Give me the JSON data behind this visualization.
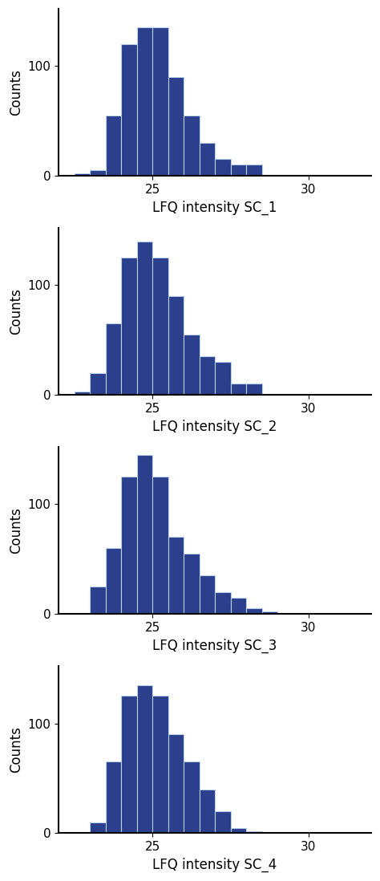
{
  "subplots": [
    {
      "xlabel": "LFQ intensity SC_1",
      "counts": [
        2,
        5,
        55,
        120,
        135,
        135,
        90,
        55,
        30,
        15,
        10,
        10
      ],
      "bin_start": 22.5,
      "bin_width": 0.5
    },
    {
      "xlabel": "LFQ intensity SC_2",
      "counts": [
        3,
        20,
        65,
        125,
        140,
        125,
        90,
        55,
        35,
        30,
        10,
        10
      ],
      "bin_start": 22.5,
      "bin_width": 0.5
    },
    {
      "xlabel": "LFQ intensity SC_3",
      "counts": [
        25,
        60,
        125,
        145,
        125,
        70,
        55,
        35,
        20,
        15,
        5,
        2
      ],
      "bin_start": 23.0,
      "bin_width": 0.5
    },
    {
      "xlabel": "LFQ intensity SC_4",
      "counts": [
        10,
        65,
        125,
        135,
        125,
        90,
        65,
        40,
        20,
        5,
        2
      ],
      "bin_start": 23.0,
      "bin_width": 0.5
    }
  ],
  "bar_color": "#2b3f8c",
  "bar_edgecolor": "#b8d0e8",
  "bar_linewidth": 0.8,
  "ylabel": "Counts",
  "ylabel_fontsize": 12,
  "xlabel_fontsize": 12,
  "tick_fontsize": 11,
  "xlim": [
    22.0,
    32.0
  ],
  "ylim": [
    0,
    152
  ],
  "yticks": [
    0,
    100
  ],
  "xticks": [
    25,
    30
  ],
  "background_color": "#ffffff",
  "figure_bg": "#ffffff",
  "spine_linewidth": 1.5
}
